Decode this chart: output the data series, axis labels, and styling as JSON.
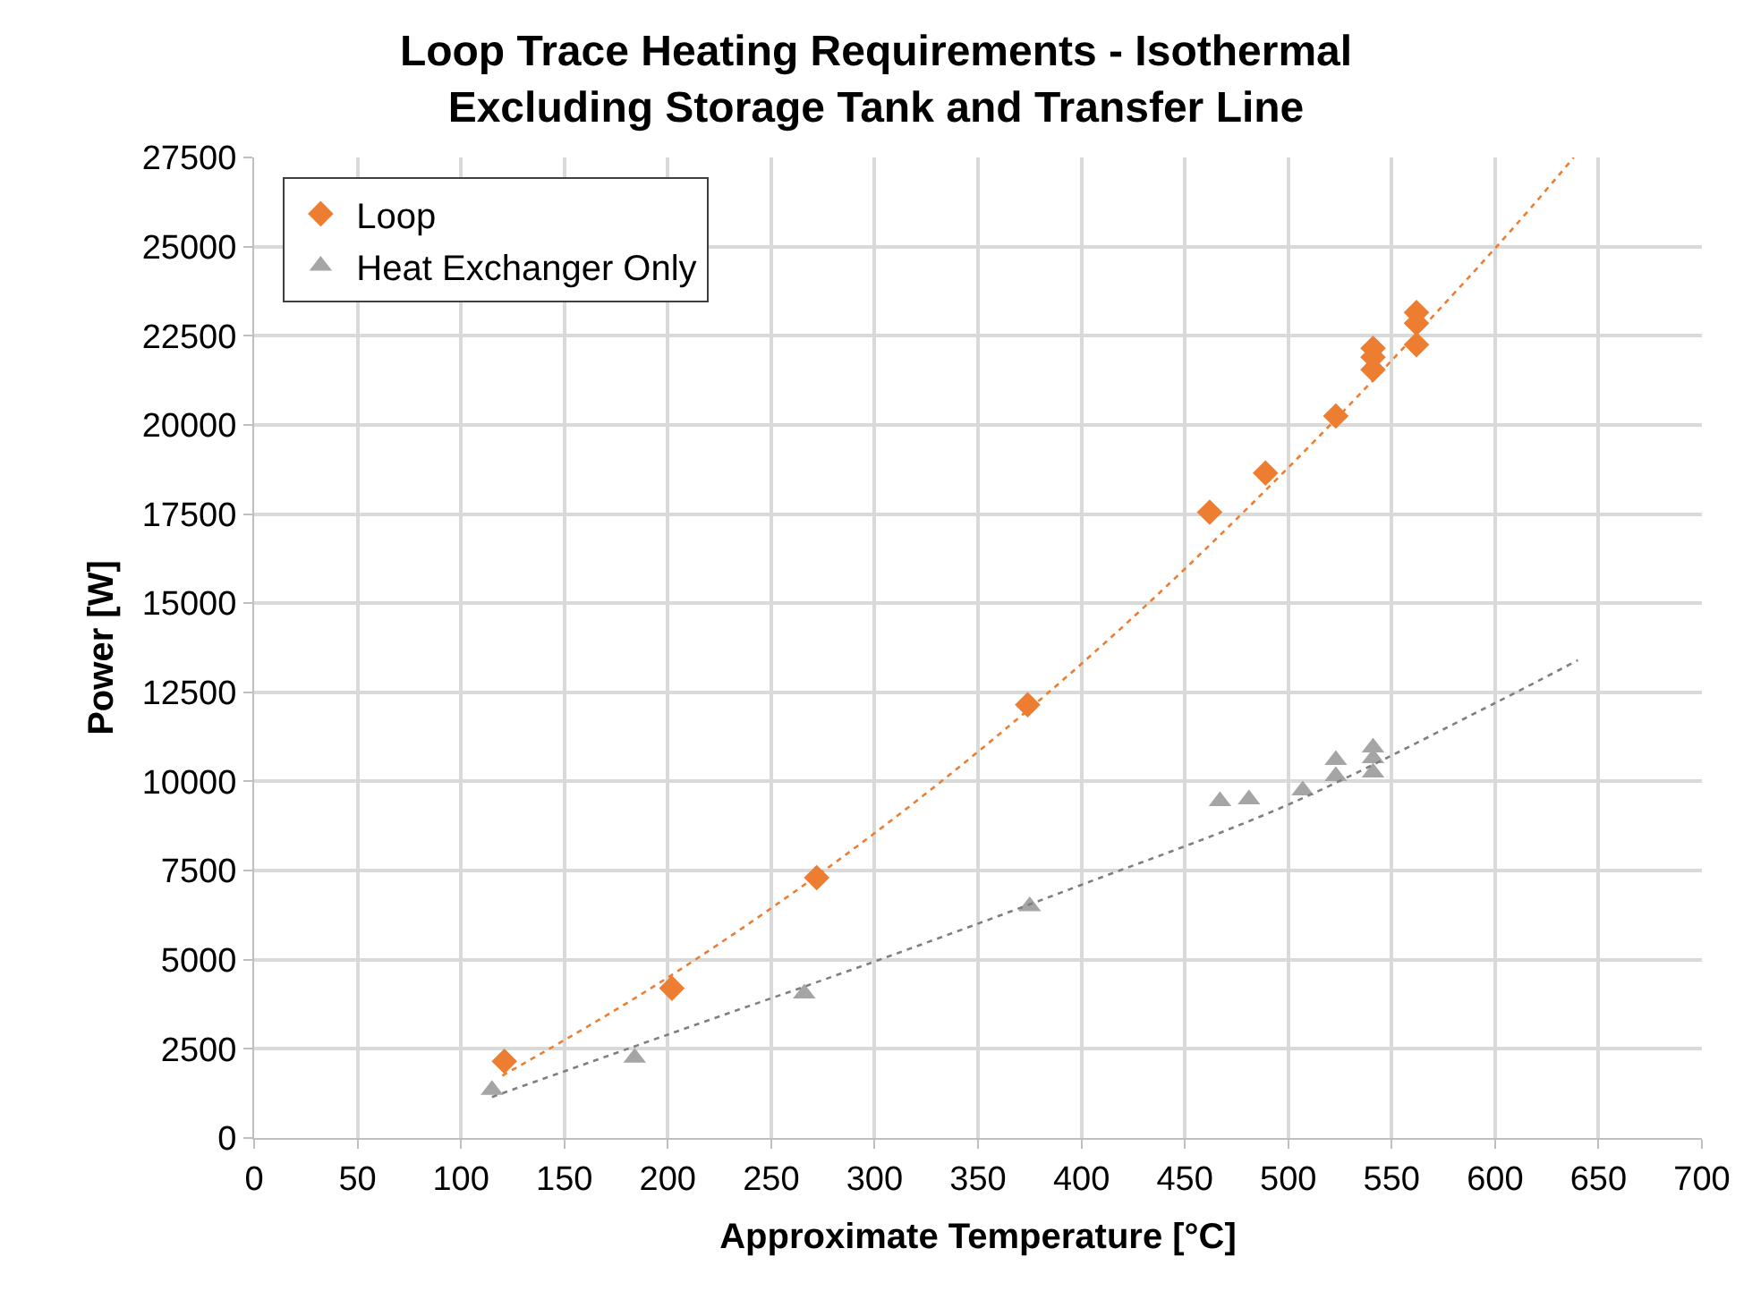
{
  "chart_data": {
    "type": "scatter",
    "title": "Loop Trace Heating Requirements - Isothermal\nExcluding Storage Tank and Transfer Line",
    "xlabel": "Approximate Temperature [°C]",
    "ylabel": "Power [W]",
    "xlim": [
      0,
      700
    ],
    "xticks": [
      0,
      50,
      100,
      150,
      200,
      250,
      300,
      350,
      400,
      450,
      500,
      550,
      600,
      650,
      700
    ],
    "ylim": [
      0,
      27500
    ],
    "yticks": [
      0,
      2500,
      5000,
      7500,
      10000,
      12500,
      15000,
      17500,
      20000,
      22500,
      25000,
      27500
    ],
    "grid": true,
    "legend": "top left",
    "series": [
      {
        "name": "Loop",
        "color": "#ed7d31",
        "marker": "diamond",
        "x": [
          121,
          202,
          272,
          374,
          462,
          489,
          523,
          541,
          541,
          541,
          562,
          562,
          562
        ],
        "values": [
          2150,
          4200,
          7300,
          12150,
          17550,
          18650,
          20250,
          21550,
          21900,
          22150,
          22250,
          22850,
          23150
        ]
      },
      {
        "name": "Heat Exchanger Only",
        "color": "#a5a5a5",
        "marker": "triangle",
        "x": [
          115,
          184,
          266,
          375,
          467,
          481,
          507,
          523,
          523,
          541,
          541,
          541
        ],
        "values": [
          1350,
          2250,
          4050,
          6500,
          9450,
          9500,
          9750,
          10150,
          10600,
          10250,
          10650,
          10950
        ]
      },
      {
        "type": "line",
        "color": "#ed7d31",
        "line_style": "dotted",
        "x": [
          120,
          200,
          300,
          400,
          500,
          600,
          638
        ],
        "values": [
          1750,
          4500,
          8550,
          13300,
          18800,
          24950,
          27500
        ]
      },
      {
        "type": "line",
        "color": "#7f7f7f",
        "line_style": "dotted",
        "x": [
          115,
          200,
          300,
          400,
          500,
          600,
          640
        ],
        "values": [
          1150,
          2900,
          4950,
          7100,
          9350,
          12200,
          13400
        ]
      }
    ]
  }
}
